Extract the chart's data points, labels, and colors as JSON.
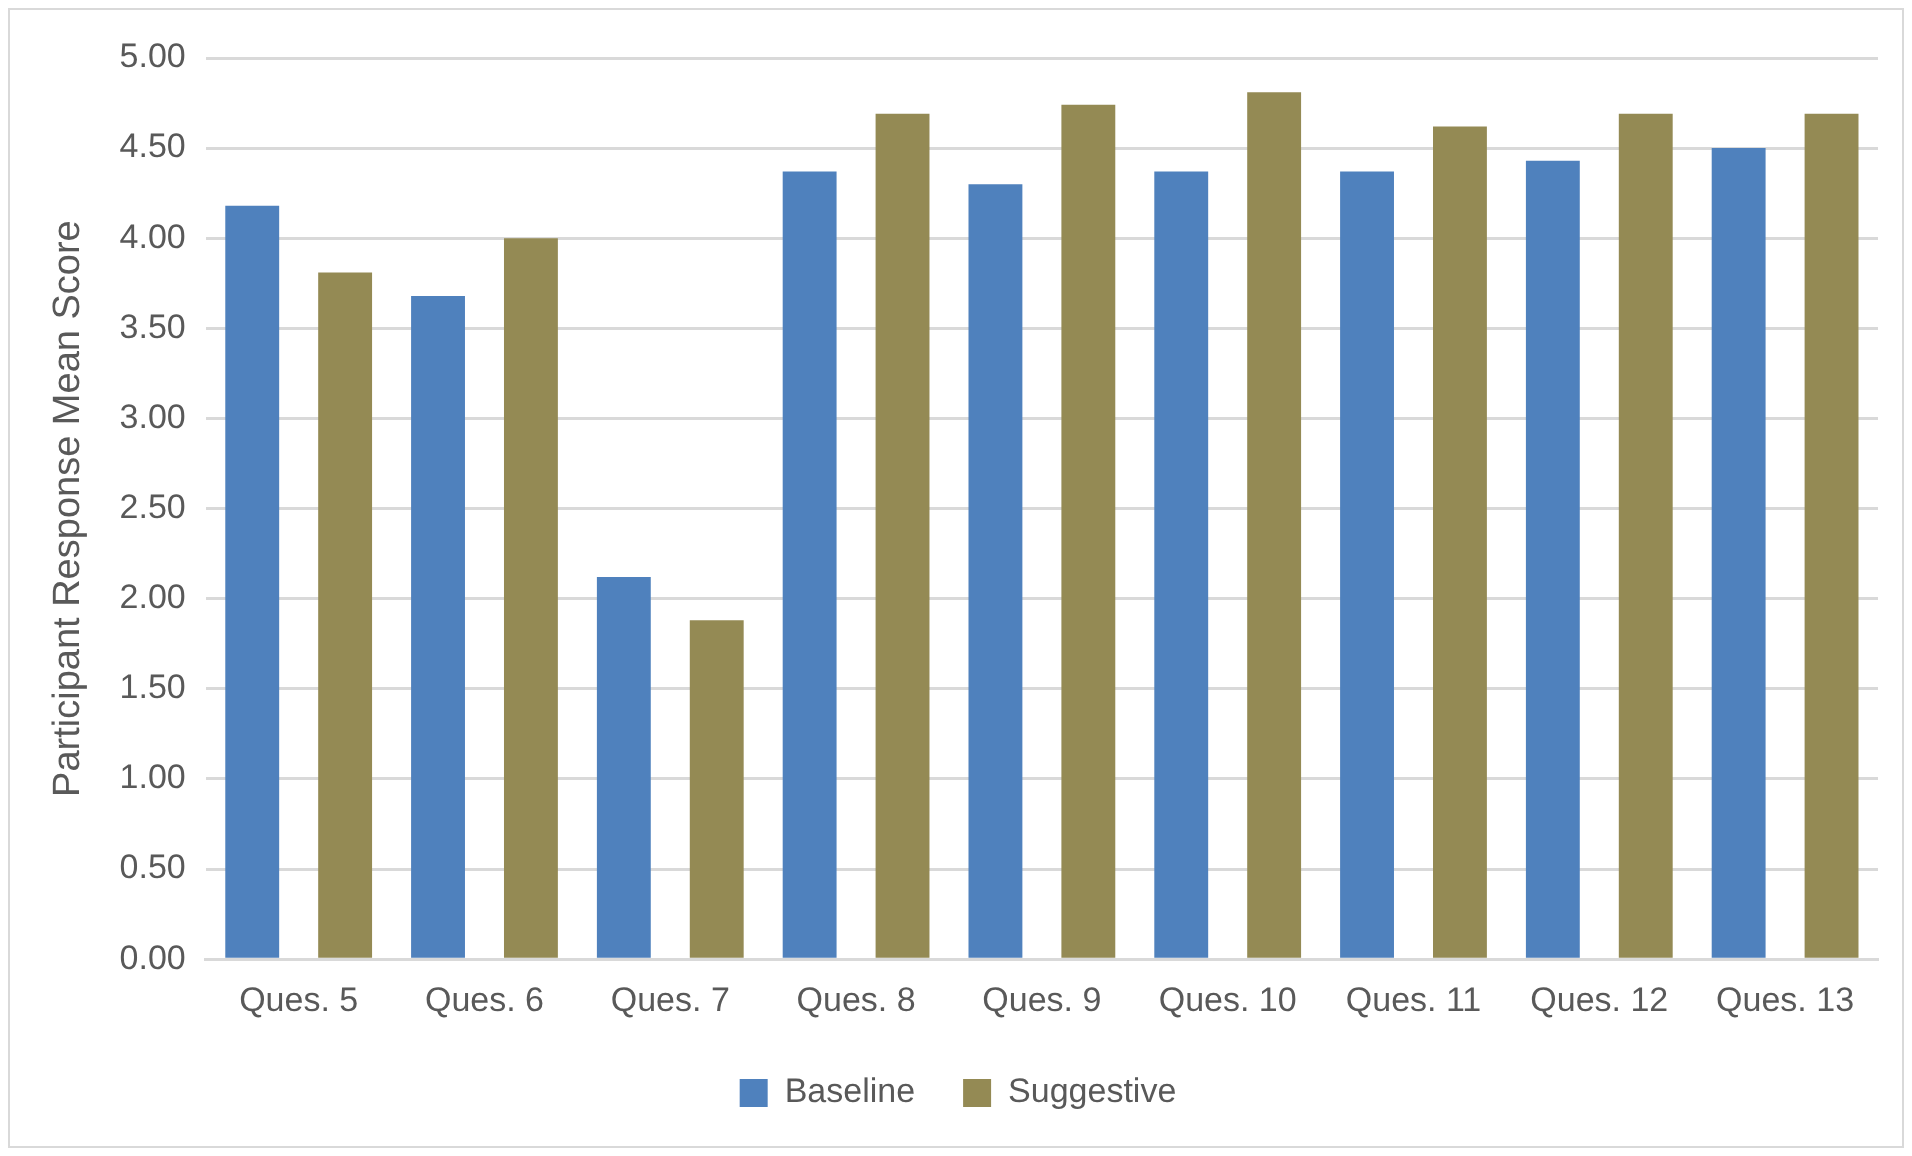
{
  "chart_data": {
    "type": "bar",
    "ylabel": "Participant Response Mean Score",
    "categories": [
      "Ques. 5",
      "Ques. 6",
      "Ques. 7",
      "Ques. 8",
      "Ques. 9",
      "Ques. 10",
      "Ques. 11",
      "Ques. 12",
      "Ques. 13"
    ],
    "series": [
      {
        "name": "Baseline",
        "color": "#4f81bd",
        "values": [
          4.18,
          3.68,
          2.12,
          4.37,
          4.3,
          4.37,
          4.37,
          4.43,
          4.5
        ]
      },
      {
        "name": "Suggestive",
        "color": "#948a54",
        "values": [
          3.81,
          4.0,
          1.88,
          4.69,
          4.74,
          4.81,
          4.62,
          4.69,
          4.69
        ]
      }
    ],
    "ylim": [
      0,
      5
    ],
    "yticks": [
      {
        "value": 0,
        "label": "0.00"
      },
      {
        "value": 0.5,
        "label": "0.50"
      },
      {
        "value": 1,
        "label": "1.00"
      },
      {
        "value": 1.5,
        "label": "1.50"
      },
      {
        "value": 2,
        "label": "2.00"
      },
      {
        "value": 2.5,
        "label": "2.50"
      },
      {
        "value": 3,
        "label": "3.00"
      },
      {
        "value": 3.5,
        "label": "3.50"
      },
      {
        "value": 4,
        "label": "4.00"
      },
      {
        "value": 4.5,
        "label": "4.50"
      },
      {
        "value": 5,
        "label": "5.00"
      }
    ],
    "grid": "y",
    "legend": "bottom"
  }
}
